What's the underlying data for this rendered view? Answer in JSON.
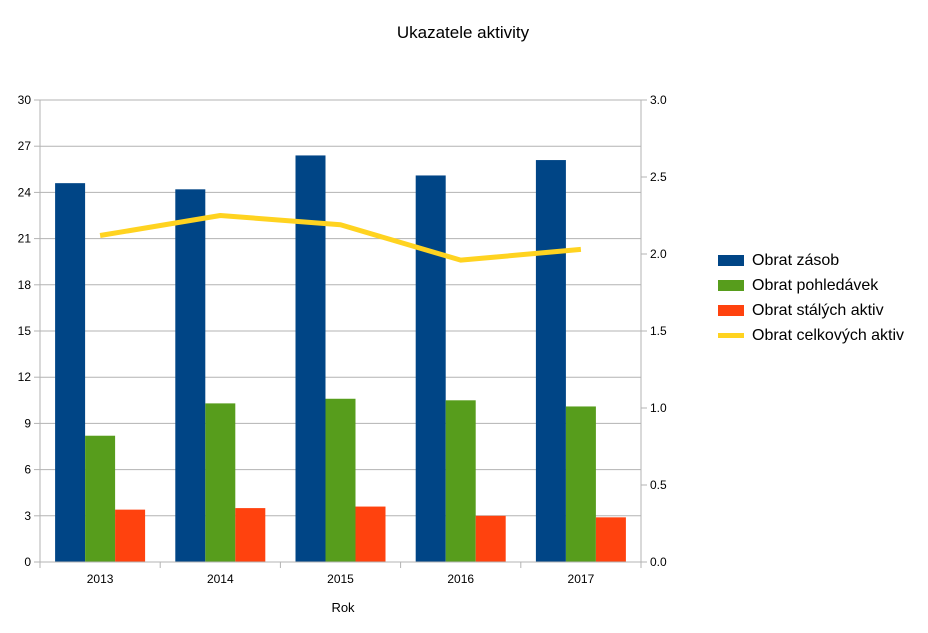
{
  "chart_data": {
    "type": "bar",
    "title": "Ukazatele aktivity",
    "xlabel": "Rok",
    "ylabel": "",
    "categories": [
      "2013",
      "2014",
      "2015",
      "2016",
      "2017"
    ],
    "ylim": [
      0,
      30
    ],
    "y_ticks": [
      "0",
      "3",
      "6",
      "9",
      "12",
      "15",
      "18",
      "21",
      "24",
      "27",
      "30"
    ],
    "y2lim": [
      0,
      3
    ],
    "y2_ticks": [
      "0.0",
      "0.5",
      "1.0",
      "1.5",
      "2.0",
      "2.5",
      "3.0"
    ],
    "grid": true,
    "legend_position": "right",
    "series": [
      {
        "name": "Obrat zásob",
        "type": "bar",
        "axis": "left",
        "color": "#004586",
        "values": [
          24.6,
          24.2,
          26.4,
          25.1,
          26.1
        ]
      },
      {
        "name": "Obrat pohledávek",
        "type": "bar",
        "axis": "left",
        "color": "#579d1c",
        "values": [
          8.2,
          10.3,
          10.6,
          10.5,
          10.1
        ]
      },
      {
        "name": "Obrat stálých aktiv",
        "type": "bar",
        "axis": "left",
        "color": "#ff420e",
        "values": [
          3.4,
          3.5,
          3.6,
          3.0,
          2.9
        ]
      },
      {
        "name": "Obrat celkových aktiv",
        "type": "line",
        "axis": "right",
        "color": "#ffd320",
        "values": [
          2.12,
          2.25,
          2.19,
          1.96,
          2.03
        ]
      }
    ]
  }
}
